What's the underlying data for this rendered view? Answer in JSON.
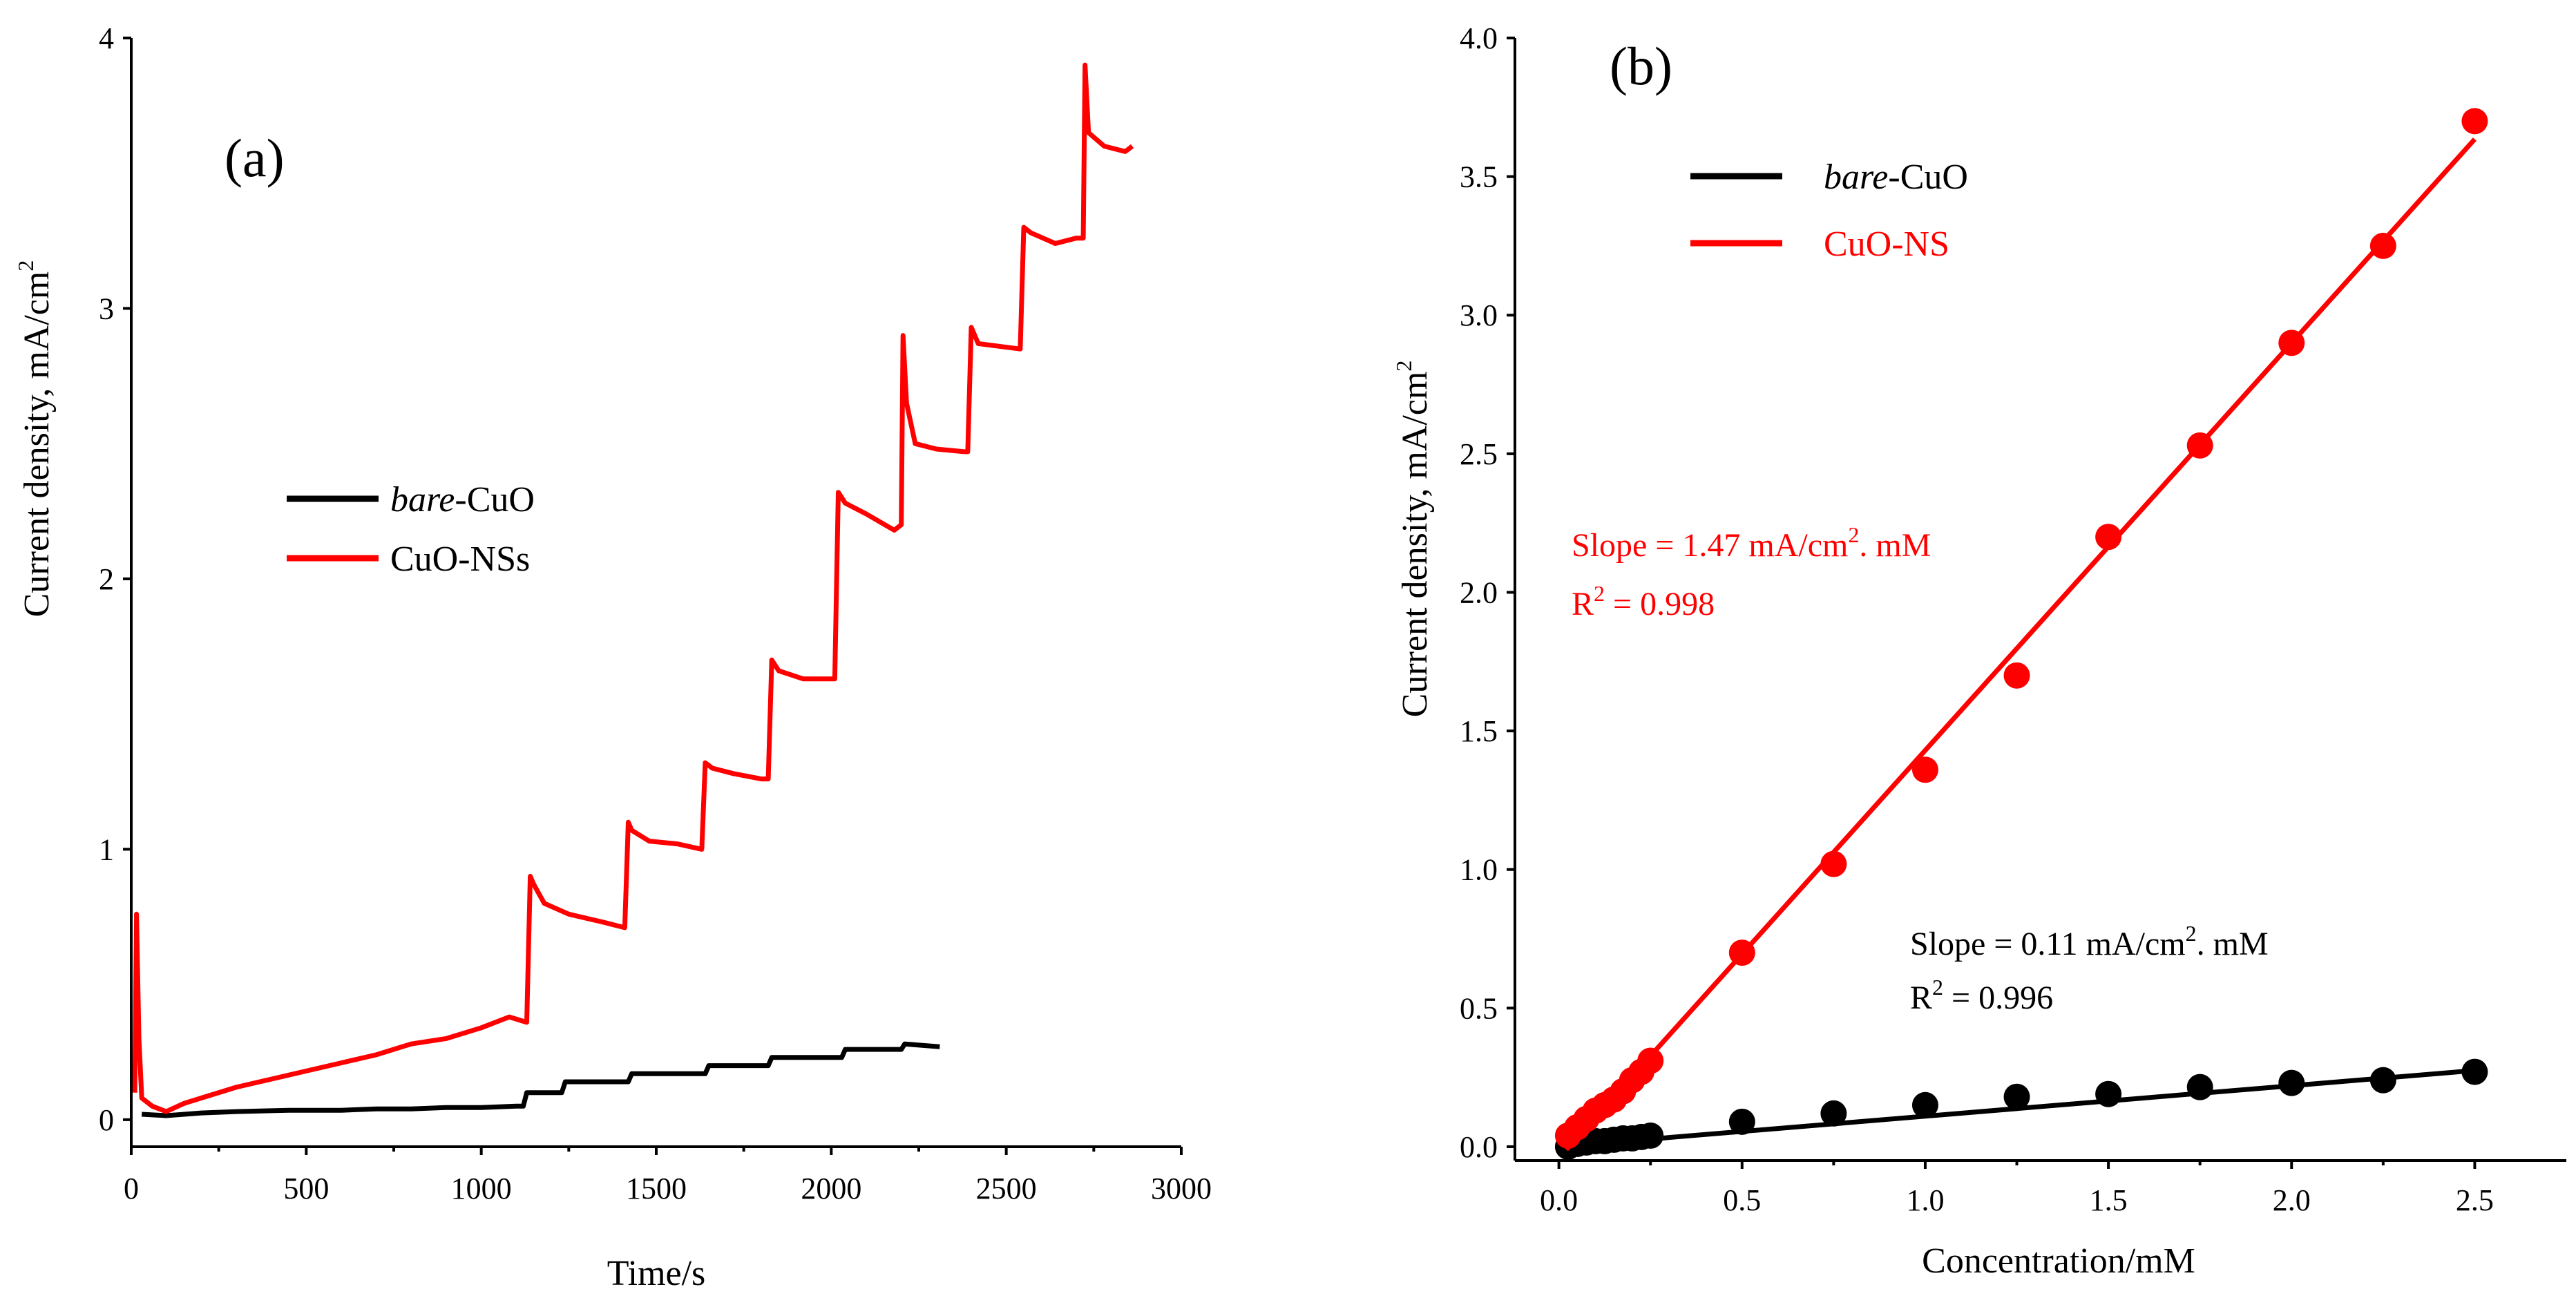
{
  "colors": {
    "bare": "#000000",
    "ns": "#ff0000",
    "axis": "#000000",
    "background": "#ffffff"
  },
  "chart_data": [
    {
      "id": "a",
      "type": "line",
      "panel_label": "(a)",
      "title": "",
      "xlabel": "Time/s",
      "ylabel": "Current density, mA/cm",
      "ylabel_sup": "2",
      "xlim": [
        0,
        3000
      ],
      "ylim": [
        -0.1,
        4.0
      ],
      "xticks": [
        0,
        500,
        1000,
        1500,
        2000,
        2500,
        3000
      ],
      "yticks": [
        0,
        1,
        2,
        3,
        4
      ],
      "legend": {
        "position": "center-left",
        "entries": [
          {
            "label_italic": "bare",
            "label": "-CuO",
            "color": "#000000"
          },
          {
            "label_italic": "",
            "label": "CuO-NSs",
            "color": "#ff0000"
          }
        ]
      },
      "series": [
        {
          "name": "bare-CuO",
          "color": "#000000",
          "points": [
            [
              30,
              0.02
            ],
            [
              100,
              0.015
            ],
            [
              200,
              0.025
            ],
            [
              300,
              0.03
            ],
            [
              450,
              0.035
            ],
            [
              600,
              0.035
            ],
            [
              700,
              0.04
            ],
            [
              800,
              0.04
            ],
            [
              900,
              0.045
            ],
            [
              1000,
              0.045
            ],
            [
              1100,
              0.05
            ],
            [
              1120,
              0.05
            ],
            [
              1130,
              0.1
            ],
            [
              1230,
              0.1
            ],
            [
              1240,
              0.14
            ],
            [
              1420,
              0.14
            ],
            [
              1430,
              0.17
            ],
            [
              1640,
              0.17
            ],
            [
              1650,
              0.2
            ],
            [
              1820,
              0.2
            ],
            [
              1830,
              0.23
            ],
            [
              2030,
              0.23
            ],
            [
              2040,
              0.26
            ],
            [
              2200,
              0.26
            ],
            [
              2210,
              0.28
            ],
            [
              2310,
              0.27
            ]
          ]
        },
        {
          "name": "CuO-NSs",
          "color": "#ff0000",
          "points": [
            [
              10,
              0.1
            ],
            [
              15,
              0.76
            ],
            [
              22,
              0.3
            ],
            [
              30,
              0.08
            ],
            [
              60,
              0.05
            ],
            [
              100,
              0.03
            ],
            [
              150,
              0.06
            ],
            [
              200,
              0.08
            ],
            [
              300,
              0.12
            ],
            [
              400,
              0.15
            ],
            [
              500,
              0.18
            ],
            [
              600,
              0.21
            ],
            [
              700,
              0.24
            ],
            [
              800,
              0.28
            ],
            [
              900,
              0.3
            ],
            [
              1000,
              0.34
            ],
            [
              1080,
              0.38
            ],
            [
              1130,
              0.36
            ],
            [
              1140,
              0.9
            ],
            [
              1150,
              0.87
            ],
            [
              1180,
              0.8
            ],
            [
              1250,
              0.76
            ],
            [
              1350,
              0.73
            ],
            [
              1410,
              0.71
            ],
            [
              1420,
              1.1
            ],
            [
              1430,
              1.07
            ],
            [
              1480,
              1.03
            ],
            [
              1560,
              1.02
            ],
            [
              1630,
              1.0
            ],
            [
              1640,
              1.32
            ],
            [
              1660,
              1.3
            ],
            [
              1720,
              1.28
            ],
            [
              1800,
              1.26
            ],
            [
              1820,
              1.26
            ],
            [
              1830,
              1.7
            ],
            [
              1850,
              1.66
            ],
            [
              1920,
              1.63
            ],
            [
              2000,
              1.63
            ],
            [
              2010,
              1.63
            ],
            [
              2020,
              2.32
            ],
            [
              2040,
              2.28
            ],
            [
              2100,
              2.24
            ],
            [
              2180,
              2.18
            ],
            [
              2200,
              2.2
            ],
            [
              2205,
              2.9
            ],
            [
              2215,
              2.65
            ],
            [
              2240,
              2.5
            ],
            [
              2300,
              2.48
            ],
            [
              2380,
              2.47
            ],
            [
              2390,
              2.47
            ],
            [
              2400,
              2.93
            ],
            [
              2420,
              2.87
            ],
            [
              2480,
              2.86
            ],
            [
              2540,
              2.85
            ],
            [
              2550,
              3.3
            ],
            [
              2570,
              3.28
            ],
            [
              2640,
              3.24
            ],
            [
              2700,
              3.26
            ],
            [
              2720,
              3.26
            ],
            [
              2725,
              3.9
            ],
            [
              2735,
              3.65
            ],
            [
              2780,
              3.6
            ],
            [
              2840,
              3.58
            ],
            [
              2860,
              3.6
            ]
          ]
        }
      ]
    },
    {
      "id": "b",
      "type": "scatter",
      "panel_label": "(b)",
      "title": "",
      "xlabel": "Concentration/mM",
      "ylabel": "Current density, mA/cm",
      "ylabel_sup": "2",
      "xlim": [
        -0.12,
        2.75
      ],
      "ylim": [
        -0.05,
        4.0
      ],
      "xticks": [
        0.0,
        0.5,
        1.0,
        1.5,
        2.0,
        2.5
      ],
      "xtick_labels": [
        "0.0",
        "0.5",
        "1.0",
        "1.5",
        "2.0",
        "2.5"
      ],
      "yticks": [
        0.0,
        0.5,
        1.0,
        1.5,
        2.0,
        2.5,
        3.0,
        3.5,
        4.0
      ],
      "ytick_labels": [
        "0.0",
        "0.5",
        "1.0",
        "1.5",
        "2.0",
        "2.5",
        "3.0",
        "3.5",
        "4.0"
      ],
      "legend": {
        "position": "top-left",
        "entries": [
          {
            "label_italic": "bare",
            "label": "-CuO",
            "color": "#000000"
          },
          {
            "label_italic": "",
            "label": "CuO-NS",
            "color": "#ff0000"
          }
        ]
      },
      "annotations": [
        {
          "id": "ns",
          "color": "#ff0000",
          "line1_pre": "Slope = 1.47 mA/cm",
          "line1_sup": "2",
          "line1_post": ". mM",
          "line2_pre": "R",
          "line2_sup": "2",
          "line2_post": " = 0.998"
        },
        {
          "id": "bare",
          "color": "#000000",
          "line1_pre": "Slope = 0.11 mA/cm",
          "line1_sup": "2",
          "line1_post": ". mM",
          "line2_pre": "R",
          "line2_sup": "2",
          "line2_post": " = 0.996"
        }
      ],
      "series": [
        {
          "name": "bare-CuO",
          "color": "#000000",
          "x": [
            0.025,
            0.05,
            0.075,
            0.1,
            0.125,
            0.15,
            0.175,
            0.2,
            0.225,
            0.25,
            0.5,
            0.75,
            1.0,
            1.25,
            1.5,
            1.75,
            2.0,
            2.25,
            2.5
          ],
          "y": [
            0.0,
            0.01,
            0.015,
            0.02,
            0.02,
            0.025,
            0.03,
            0.03,
            0.035,
            0.04,
            0.09,
            0.12,
            0.15,
            0.18,
            0.19,
            0.215,
            0.23,
            0.24,
            0.27
          ],
          "fit": {
            "slope": 0.11,
            "intercept": 0.0,
            "x_range": [
              0.0,
              2.5
            ]
          }
        },
        {
          "name": "CuO-NS",
          "color": "#ff0000",
          "x": [
            0.025,
            0.05,
            0.075,
            0.1,
            0.125,
            0.15,
            0.175,
            0.2,
            0.225,
            0.25,
            0.5,
            0.75,
            1.0,
            1.25,
            1.5,
            1.75,
            2.0,
            2.25,
            2.5
          ],
          "y": [
            0.04,
            0.07,
            0.1,
            0.13,
            0.15,
            0.17,
            0.2,
            0.24,
            0.27,
            0.31,
            0.7,
            1.02,
            1.36,
            1.7,
            2.2,
            2.53,
            2.9,
            3.25,
            3.7
          ],
          "fit": {
            "slope": 1.47,
            "intercept": -0.04,
            "x_range": [
              0.02,
              2.5
            ]
          }
        }
      ]
    }
  ]
}
